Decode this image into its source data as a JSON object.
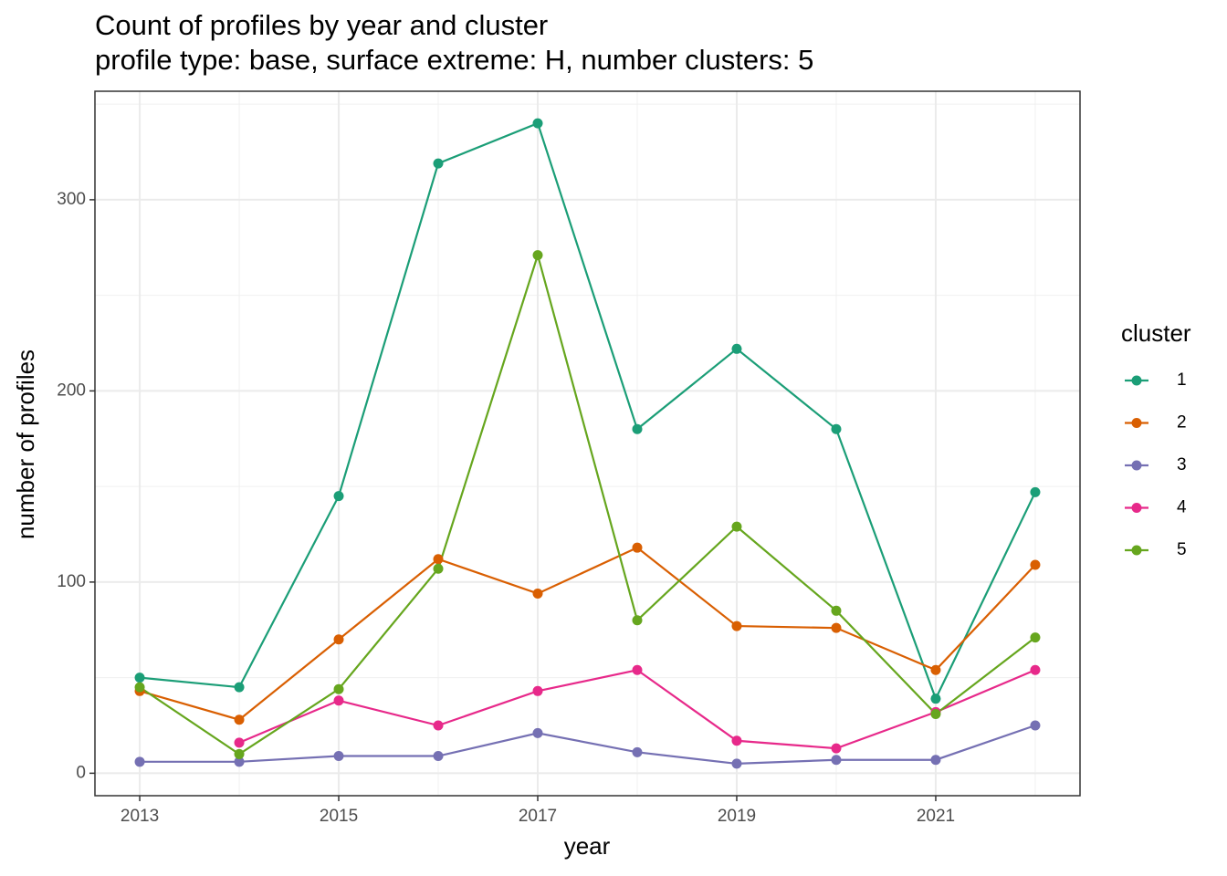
{
  "chart_data": {
    "type": "line",
    "title": "Count of profiles by year and cluster",
    "subtitle": "profile type: base, surface extreme: H, number clusters: 5",
    "x_label": "year",
    "y_label": "number of profiles",
    "x": [
      2013,
      2014,
      2015,
      2016,
      2017,
      2018,
      2019,
      2020,
      2021,
      2022
    ],
    "series": [
      {
        "name": "1",
        "color": "#1b9e77",
        "values": [
          50,
          45,
          145,
          319,
          340,
          180,
          222,
          180,
          39,
          147
        ]
      },
      {
        "name": "2",
        "color": "#d95f02",
        "values": [
          43,
          28,
          70,
          112,
          94,
          118,
          77,
          76,
          54,
          109
        ]
      },
      {
        "name": "3",
        "color": "#7570b3",
        "values": [
          6,
          6,
          9,
          9,
          21,
          11,
          5,
          7,
          7,
          25
        ]
      },
      {
        "name": "4",
        "color": "#e7298a",
        "values": [
          null,
          16,
          38,
          25,
          43,
          54,
          17,
          13,
          32,
          54
        ]
      },
      {
        "name": "5",
        "color": "#66a61e",
        "values": [
          45,
          10,
          44,
          107,
          271,
          80,
          129,
          85,
          31,
          71
        ]
      }
    ],
    "legend_title": "cluster",
    "legend": "right",
    "xlim": [
      2012.55,
      2022.45
    ],
    "xticks": [
      2013,
      2015,
      2017,
      2019,
      2021
    ],
    "ylim": [
      -11.75,
      356.75
    ],
    "yticks": [
      0,
      100,
      200,
      300
    ],
    "grid": true
  }
}
